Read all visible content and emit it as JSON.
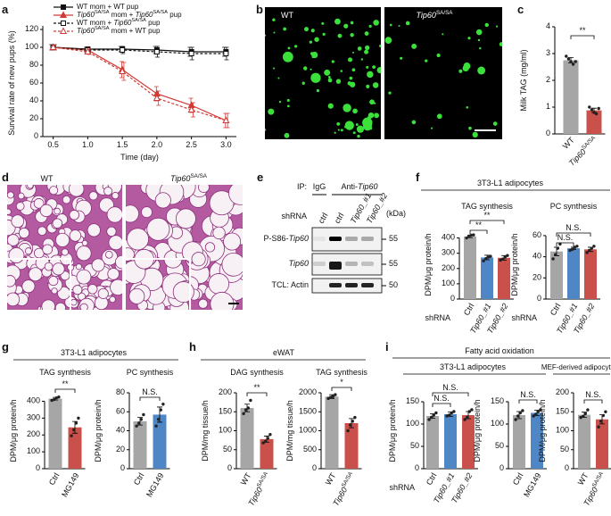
{
  "panel_labels": [
    "a",
    "b",
    "c",
    "d",
    "e",
    "f",
    "g",
    "h",
    "i"
  ],
  "images": {
    "b": [
      "WT",
      "Tip60SA/SA"
    ],
    "d": [
      "WT",
      "Tip60SA/SA"
    ]
  },
  "blot": {
    "ip_label": "IP:",
    "ip_groups": [
      "IgG",
      "Anti-Tip60"
    ],
    "shrna_label": "shRNA",
    "lanes": [
      "ctrl",
      "ctrl",
      "Tip60_#1",
      "Tip60_#2"
    ],
    "kda_label": "(kDa)",
    "rows": [
      {
        "label": "P-S86-Tip60",
        "kda": 55
      },
      {
        "label": "Tip60",
        "kda": 55
      },
      {
        "label": "TCL: Actin",
        "kda": 50
      }
    ]
  },
  "group_titles": [
    "3T3-L1 adipocytes",
    "3T3-L1 adipocytes",
    "eWAT",
    "Fatty acid oxidation",
    "3T3-L1 adipocytes",
    "MEF-derived adipocytes"
  ],
  "chart_data": [
    {
      "type": "line",
      "xlabel": "Time (day)",
      "ylabel": "Survival rate of new pups (%)",
      "legend": "top left",
      "x": [
        0.5,
        1,
        1.5,
        2,
        2.5,
        3
      ],
      "xlim": [
        0.35,
        3.15
      ],
      "xticks": [
        0.5,
        {
          "value": 1,
          "label": "1.0"
        },
        1.5,
        {
          "value": 2,
          "label": "2.0"
        },
        2.5,
        {
          "value": 3,
          "label": "3.0"
        }
      ],
      "ylim": [
        0,
        120
      ],
      "yticks": [
        0,
        20,
        40,
        60,
        80,
        100,
        120
      ],
      "series": [
        {
          "name": "WT mom + WT pup",
          "color": "#111111",
          "marker": "square",
          "filled": true,
          "dashed": false,
          "values": [
            100,
            98,
            98,
            97,
            95,
            95
          ],
          "errors": [
            3,
            2,
            3,
            4,
            5,
            5
          ]
        },
        {
          "name": "Tip60SA/SA mom + Tip60SA/SA pup",
          "color": "#d03a35",
          "marker": "triangle",
          "filled": true,
          "dashed": false,
          "values": [
            100,
            97,
            75,
            48,
            35,
            18
          ],
          "errors": [
            3,
            3,
            9,
            8,
            8,
            8
          ]
        },
        {
          "name": "WT mom + Tip60SA/SA pup",
          "color": "#111111",
          "marker": "square",
          "filled": false,
          "dashed": true,
          "values": [
            100,
            97,
            97,
            95,
            93,
            93
          ],
          "errors": [
            3,
            3,
            4,
            6,
            7,
            7
          ]
        },
        {
          "name": "Tip60SA/SA mom + WT pup",
          "color": "#d03a35",
          "marker": "triangle",
          "filled": false,
          "dashed": true,
          "values": [
            100,
            95,
            73,
            43,
            30,
            18
          ],
          "errors": [
            3,
            3,
            10,
            8,
            8,
            8
          ]
        }
      ]
    },
    {
      "type": "bar",
      "ylabel": "Milk TAG (mg/ml)",
      "categories": [
        "WT",
        "Tip60SA/SA"
      ],
      "colors": [
        "#a6a6a6",
        "#c9504b"
      ],
      "values": [
        2.75,
        0.88
      ],
      "errors": [
        0.1,
        0.08
      ],
      "points": [
        [
          2.9,
          2.8,
          2.7,
          2.6,
          2.7
        ],
        [
          1.0,
          0.9,
          0.8,
          0.75,
          0.95
        ]
      ],
      "ylim": [
        0,
        4
      ],
      "yticks": [
        0,
        1,
        2,
        3,
        4
      ],
      "significance": [
        "**"
      ]
    },
    {
      "type": "bar",
      "title": "TAG synthesis",
      "ylabel": "DPM/μg protein/h",
      "x_prefix": "shRNA",
      "categories": [
        "Ctrl",
        "Tip60_#1",
        "Tip60_#2"
      ],
      "colors": [
        "#a6a6a6",
        "#4f86c6",
        "#c9504b"
      ],
      "values": [
        410,
        272,
        270
      ],
      "errors": [
        8,
        15,
        15
      ],
      "points": [
        [
          400,
          412,
          418,
          420
        ],
        [
          250,
          265,
          275,
          280
        ],
        [
          255,
          262,
          275,
          285
        ]
      ],
      "ylim": [
        0,
        450
      ],
      "yticks": [
        0,
        100,
        200,
        300,
        400
      ],
      "significance": [
        "**",
        "**"
      ]
    },
    {
      "type": "bar",
      "title": "PC synthesis",
      "ylabel": "DPM/μg protein/h",
      "x_prefix": "shRNA",
      "categories": [
        "Ctrl",
        "Tip60_#1",
        "Tip60_#2"
      ],
      "colors": [
        "#a6a6a6",
        "#4f86c6",
        "#c9504b"
      ],
      "values": [
        45,
        48,
        47
      ],
      "errors": [
        4,
        1,
        2
      ],
      "points": [
        [
          38,
          42,
          48,
          52
        ],
        [
          46,
          47,
          49,
          50
        ],
        [
          44,
          46,
          48,
          50
        ]
      ],
      "ylim": [
        0,
        65
      ],
      "yticks": [
        0,
        20,
        40,
        60
      ],
      "significance": [
        "N.S.",
        "N.S."
      ]
    },
    {
      "type": "bar",
      "title": "TAG synthesis",
      "ylabel": "DPM/μg protein/h",
      "categories": [
        "Ctrl",
        "MG149"
      ],
      "colors": [
        "#a6a6a6",
        "#c9504b"
      ],
      "values": [
        415,
        245
      ],
      "errors": [
        8,
        35
      ],
      "points": [
        [
          405,
          410,
          420,
          425
        ],
        [
          195,
          230,
          270,
          300
        ]
      ],
      "ylim": [
        0,
        450
      ],
      "yticks": [
        0,
        100,
        200,
        300,
        400
      ],
      "significance": [
        "**"
      ]
    },
    {
      "type": "bar",
      "title": "PC synthesis",
      "ylabel": "DPM/μg protein/h",
      "categories": [
        "Ctrl",
        "MG149"
      ],
      "colors": [
        "#a6a6a6",
        "#4f86c6"
      ],
      "values": [
        50,
        57
      ],
      "errors": [
        4,
        8
      ],
      "points": [
        [
          45,
          48,
          52,
          57
        ],
        [
          45,
          52,
          62,
          68
        ]
      ],
      "ylim": [
        0,
        80
      ],
      "yticks": [
        0,
        20,
        40,
        60,
        80
      ],
      "significance": [
        "N.S."
      ]
    },
    {
      "type": "bar",
      "title": "DAG synthesis",
      "ylabel": "DPM/mg tissue/h",
      "categories": [
        "WT",
        "Tip60SA/SA"
      ],
      "colors": [
        "#a6a6a6",
        "#c9504b"
      ],
      "values": [
        160,
        78
      ],
      "errors": [
        10,
        8
      ],
      "points": [
        [
          145,
          155,
          160,
          180
        ],
        [
          68,
          72,
          80,
          90
        ]
      ],
      "ylim": [
        0,
        200
      ],
      "yticks": [
        0,
        50,
        100,
        150,
        200
      ],
      "significance": [
        "**"
      ]
    },
    {
      "type": "bar",
      "title": "TAG synthesis",
      "ylabel": "DPM/mg tissue/h",
      "categories": [
        "WT",
        "Tip60SA/SA"
      ],
      "colors": [
        "#a6a6a6",
        "#c9504b"
      ],
      "values": [
        1900,
        1200
      ],
      "errors": [
        50,
        120
      ],
      "points": [
        [
          1850,
          1880,
          1900,
          1950
        ],
        [
          1000,
          1150,
          1250,
          1350
        ]
      ],
      "ylim": [
        0,
        2000
      ],
      "yticks": [
        0,
        500,
        1000,
        1500,
        2000
      ],
      "significance": [
        "*"
      ]
    },
    {
      "type": "bar",
      "ylabel": "DPM/μg protein/h",
      "x_prefix": "shRNA",
      "categories": [
        "Ctrl",
        "Tip60_#1",
        "Tip60_#2"
      ],
      "colors": [
        "#a6a6a6",
        "#4f86c6",
        "#c9504b"
      ],
      "values": [
        118,
        122,
        120
      ],
      "errors": [
        5,
        5,
        8
      ],
      "points": [
        [
          110,
          115,
          120,
          125
        ],
        [
          118,
          120,
          125,
          128
        ],
        [
          110,
          115,
          128,
          132
        ]
      ],
      "ylim": [
        0,
        170
      ],
      "yticks": [
        0,
        50,
        100,
        150
      ],
      "significance": [
        "N.S.",
        "N.S."
      ]
    },
    {
      "type": "bar",
      "ylabel": "DPM/μg protein/h",
      "categories": [
        "Ctrl",
        "MG149"
      ],
      "colors": [
        "#a6a6a6",
        "#4f86c6"
      ],
      "values": [
        120,
        125
      ],
      "errors": [
        8,
        6
      ],
      "points": [
        [
          110,
          118,
          125,
          130
        ],
        [
          118,
          122,
          128,
          132
        ]
      ],
      "ylim": [
        0,
        170
      ],
      "yticks": [
        0,
        50,
        100,
        150
      ],
      "significance": [
        "N.S."
      ]
    },
    {
      "type": "bar",
      "ylabel": "DPM/μg protein/h",
      "categories": [
        "WT",
        "Tip60SA/SA"
      ],
      "colors": [
        "#a6a6a6",
        "#c9504b"
      ],
      "values": [
        142,
        130
      ],
      "errors": [
        7,
        12
      ],
      "points": [
        [
          135,
          138,
          145,
          155
        ],
        [
          110,
          125,
          140,
          150
        ]
      ],
      "ylim": [
        0,
        200
      ],
      "yticks": [
        0,
        50,
        100,
        150,
        200
      ],
      "significance": [
        "N.S."
      ]
    }
  ]
}
